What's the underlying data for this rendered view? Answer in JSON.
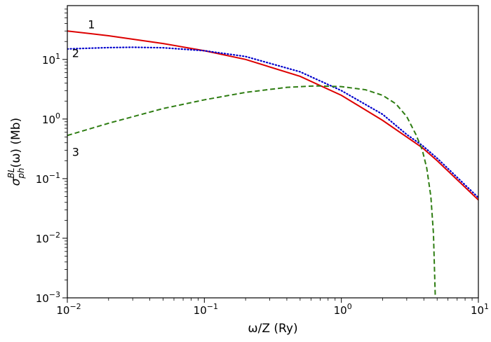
{
  "chart_data": {
    "type": "line",
    "title": "",
    "xlabel": "ω/Z (Ry)",
    "ylabel": "σph^BL(ω) (Mb)",
    "ylabel_parts": {
      "base": "σ",
      "sup": "BL",
      "sub": "ph",
      "rest": "(ω) (Mb)"
    },
    "xscale": "log",
    "yscale": "log",
    "xlim": [
      0.01,
      10
    ],
    "ylim": [
      0.001,
      80
    ],
    "grid": false,
    "x_ticks": [
      {
        "value": 0.01,
        "base": "10",
        "exp": "−2"
      },
      {
        "value": 0.1,
        "base": "10",
        "exp": "−1"
      },
      {
        "value": 1,
        "base": "10",
        "exp": "0"
      },
      {
        "value": 10,
        "base": "10",
        "exp": "1"
      }
    ],
    "y_ticks": [
      {
        "value": 0.001,
        "base": "10",
        "exp": "−3"
      },
      {
        "value": 0.01,
        "base": "10",
        "exp": "−2"
      },
      {
        "value": 0.1,
        "base": "10",
        "exp": "−1"
      },
      {
        "value": 1,
        "base": "10",
        "exp": "0"
      },
      {
        "value": 10,
        "base": "10",
        "exp": "1"
      }
    ],
    "series": [
      {
        "name": "1",
        "color": "#dd0000",
        "dash": "solid",
        "label_at": [
          0.015,
          33
        ],
        "x": [
          0.01,
          0.02,
          0.05,
          0.1,
          0.2,
          0.5,
          1,
          2,
          3.9,
          5,
          10
        ],
        "y": [
          30,
          25,
          18.5,
          14,
          10,
          5.2,
          2.5,
          0.95,
          0.33,
          0.2,
          0.044
        ]
      },
      {
        "name": "2",
        "color": "#0000cc",
        "dash": "dotted",
        "label_at": [
          0.0115,
          11
        ],
        "x": [
          0.01,
          0.02,
          0.03,
          0.05,
          0.1,
          0.2,
          0.5,
          1,
          2,
          3,
          3.9,
          5,
          10
        ],
        "y": [
          15,
          15.8,
          16,
          15.7,
          14,
          11.2,
          6.2,
          3,
          1.2,
          0.55,
          0.36,
          0.22,
          0.048
        ]
      },
      {
        "name": "3",
        "color": "#2e7d12",
        "dash": "dashed",
        "label_at": [
          0.0115,
          0.24
        ],
        "x": [
          0.01,
          0.02,
          0.05,
          0.1,
          0.2,
          0.4,
          0.65,
          1,
          1.5,
          2,
          2.5,
          3,
          3.5,
          3.9,
          4.2,
          4.5,
          4.7,
          4.85
        ],
        "y": [
          0.53,
          0.85,
          1.5,
          2.1,
          2.8,
          3.4,
          3.6,
          3.5,
          3.1,
          2.5,
          1.8,
          1.1,
          0.55,
          0.3,
          0.15,
          0.05,
          0.012,
          0.001
        ]
      }
    ]
  }
}
